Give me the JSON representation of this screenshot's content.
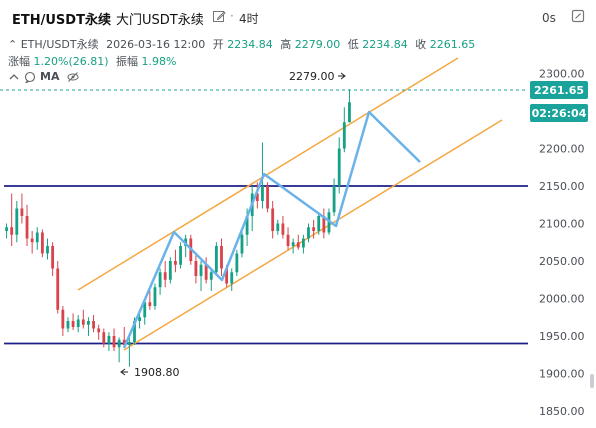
{
  "header": {
    "symbol": "ETH/USDT永续",
    "subtitle": "大门USDT永续",
    "separator": "·",
    "interval": "4时",
    "countdown": "0s"
  },
  "ohlc": {
    "symbol": "ETH/USDT永续",
    "datetime": "2026-03-16 12:00",
    "open_label": "开",
    "open": "2234.84",
    "high_label": "高",
    "high": "2279.00",
    "low_label": "低",
    "low": "2234.84",
    "close_label": "收",
    "close": "2261.65"
  },
  "change": {
    "change_label": "涨幅",
    "change": "1.20%(26.81)",
    "amplitude_label": "振幅",
    "amplitude": "1.98%"
  },
  "indicators": {
    "ma_label": "MA"
  },
  "price_axis": {
    "ticks": [
      "2300.00",
      "2250.00",
      "2200.00",
      "2150.00",
      "2100.00",
      "2050.00",
      "2000.00",
      "1950.00",
      "1900.00",
      "1850.00"
    ]
  },
  "last_price": {
    "price": "2261.65",
    "countdown": "02:26:04",
    "color": "#1aa39a"
  },
  "annotations": {
    "high_marker": "2279.00",
    "low_marker": "1908.80"
  },
  "colors": {
    "up": "#16a085",
    "down": "#d9434b",
    "channel": "#f5a742",
    "support": "#1b1f8a",
    "zigzag": "#6ab3ea"
  },
  "chart_data": {
    "type": "candlestick",
    "ylim": [
      1838,
      2318
    ],
    "horizontal_levels": [
      2150,
      1940
    ],
    "candles": [
      {
        "o": 2090,
        "h": 2100,
        "l": 2080,
        "c": 2095
      },
      {
        "o": 2095,
        "h": 2140,
        "l": 2070,
        "c": 2085
      },
      {
        "o": 2085,
        "h": 2130,
        "l": 2075,
        "c": 2120
      },
      {
        "o": 2120,
        "h": 2140,
        "l": 2100,
        "c": 2110
      },
      {
        "o": 2110,
        "h": 2125,
        "l": 2070,
        "c": 2080
      },
      {
        "o": 2080,
        "h": 2090,
        "l": 2060,
        "c": 2075
      },
      {
        "o": 2075,
        "h": 2095,
        "l": 2065,
        "c": 2088
      },
      {
        "o": 2088,
        "h": 2092,
        "l": 2055,
        "c": 2060
      },
      {
        "o": 2060,
        "h": 2080,
        "l": 2052,
        "c": 2070
      },
      {
        "o": 2070,
        "h": 2075,
        "l": 2030,
        "c": 2040
      },
      {
        "o": 2040,
        "h": 2050,
        "l": 1980,
        "c": 1985
      },
      {
        "o": 1985,
        "h": 1990,
        "l": 1950,
        "c": 1960
      },
      {
        "o": 1960,
        "h": 1975,
        "l": 1955,
        "c": 1970
      },
      {
        "o": 1970,
        "h": 1980,
        "l": 1958,
        "c": 1962
      },
      {
        "o": 1962,
        "h": 1978,
        "l": 1955,
        "c": 1972
      },
      {
        "o": 1972,
        "h": 1985,
        "l": 1960,
        "c": 1965
      },
      {
        "o": 1965,
        "h": 1975,
        "l": 1950,
        "c": 1970
      },
      {
        "o": 1970,
        "h": 1978,
        "l": 1955,
        "c": 1960
      },
      {
        "o": 1960,
        "h": 1965,
        "l": 1945,
        "c": 1955
      },
      {
        "o": 1955,
        "h": 1960,
        "l": 1935,
        "c": 1940
      },
      {
        "o": 1940,
        "h": 1955,
        "l": 1930,
        "c": 1950
      },
      {
        "o": 1950,
        "h": 1960,
        "l": 1930,
        "c": 1935
      },
      {
        "o": 1935,
        "h": 1948,
        "l": 1915,
        "c": 1945
      },
      {
        "o": 1945,
        "h": 1962,
        "l": 1935,
        "c": 1938
      },
      {
        "o": 1938,
        "h": 1948,
        "l": 1909,
        "c": 1942
      },
      {
        "o": 1942,
        "h": 1975,
        "l": 1938,
        "c": 1970
      },
      {
        "o": 1970,
        "h": 1980,
        "l": 1960,
        "c": 1975
      },
      {
        "o": 1975,
        "h": 2000,
        "l": 1965,
        "c": 1995
      },
      {
        "o": 1995,
        "h": 2010,
        "l": 1985,
        "c": 1990
      },
      {
        "o": 1990,
        "h": 2020,
        "l": 1985,
        "c": 2015
      },
      {
        "o": 2015,
        "h": 2040,
        "l": 2005,
        "c": 2035
      },
      {
        "o": 2035,
        "h": 2050,
        "l": 2015,
        "c": 2025
      },
      {
        "o": 2025,
        "h": 2055,
        "l": 2020,
        "c": 2050
      },
      {
        "o": 2050,
        "h": 2065,
        "l": 2035,
        "c": 2045
      },
      {
        "o": 2045,
        "h": 2075,
        "l": 2040,
        "c": 2070
      },
      {
        "o": 2070,
        "h": 2085,
        "l": 2055,
        "c": 2080
      },
      {
        "o": 2080,
        "h": 2085,
        "l": 2045,
        "c": 2050
      },
      {
        "o": 2050,
        "h": 2060,
        "l": 2020,
        "c": 2030
      },
      {
        "o": 2030,
        "h": 2050,
        "l": 2010,
        "c": 2045
      },
      {
        "o": 2045,
        "h": 2055,
        "l": 2020,
        "c": 2025
      },
      {
        "o": 2025,
        "h": 2040,
        "l": 2010,
        "c": 2035
      },
      {
        "o": 2035,
        "h": 2075,
        "l": 2030,
        "c": 2070
      },
      {
        "o": 2070,
        "h": 2080,
        "l": 2030,
        "c": 2040
      },
      {
        "o": 2040,
        "h": 2045,
        "l": 2015,
        "c": 2020
      },
      {
        "o": 2020,
        "h": 2040,
        "l": 2010,
        "c": 2035
      },
      {
        "o": 2035,
        "h": 2065,
        "l": 2030,
        "c": 2060
      },
      {
        "o": 2060,
        "h": 2095,
        "l": 2055,
        "c": 2085
      },
      {
        "o": 2085,
        "h": 2120,
        "l": 2070,
        "c": 2110
      },
      {
        "o": 2110,
        "h": 2150,
        "l": 2090,
        "c": 2140
      },
      {
        "o": 2140,
        "h": 2155,
        "l": 2120,
        "c": 2130
      },
      {
        "o": 2130,
        "h": 2208,
        "l": 2120,
        "c": 2150
      },
      {
        "o": 2150,
        "h": 2155,
        "l": 2115,
        "c": 2120
      },
      {
        "o": 2120,
        "h": 2130,
        "l": 2080,
        "c": 2090
      },
      {
        "o": 2090,
        "h": 2105,
        "l": 2085,
        "c": 2100
      },
      {
        "o": 2100,
        "h": 2110,
        "l": 2080,
        "c": 2085
      },
      {
        "o": 2085,
        "h": 2095,
        "l": 2065,
        "c": 2070
      },
      {
        "o": 2070,
        "h": 2080,
        "l": 2060,
        "c": 2075
      },
      {
        "o": 2075,
        "h": 2085,
        "l": 2065,
        "c": 2068
      },
      {
        "o": 2068,
        "h": 2085,
        "l": 2060,
        "c": 2080
      },
      {
        "o": 2080,
        "h": 2100,
        "l": 2075,
        "c": 2095
      },
      {
        "o": 2095,
        "h": 2105,
        "l": 2080,
        "c": 2090
      },
      {
        "o": 2090,
        "h": 2115,
        "l": 2085,
        "c": 2110
      },
      {
        "o": 2110,
        "h": 2120,
        "l": 2080,
        "c": 2088
      },
      {
        "o": 2088,
        "h": 2120,
        "l": 2085,
        "c": 2115
      },
      {
        "o": 2115,
        "h": 2160,
        "l": 2110,
        "c": 2150
      },
      {
        "o": 2150,
        "h": 2215,
        "l": 2140,
        "c": 2200
      },
      {
        "o": 2200,
        "h": 2255,
        "l": 2195,
        "c": 2235
      },
      {
        "o": 2235,
        "h": 2279,
        "l": 2234.84,
        "c": 2261.65
      }
    ]
  }
}
